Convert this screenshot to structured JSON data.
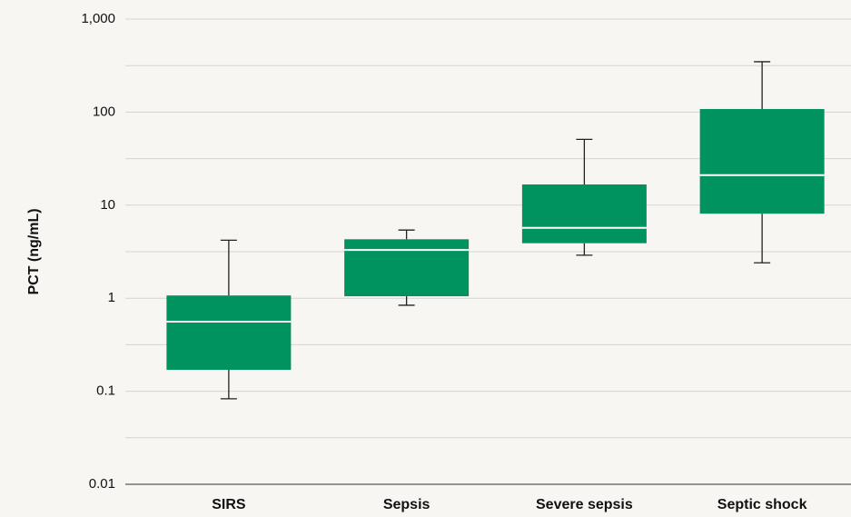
{
  "chart_data": {
    "type": "box",
    "y_label": "PCT (ng/mL)",
    "categories": [
      "SIRS",
      "Sepsis",
      "Severe sepsis",
      "Septic shock"
    ],
    "min": [
      0.083,
      0.84,
      2.9,
      2.4
    ],
    "q1": [
      0.17,
      1.05,
      3.9,
      8.1
    ],
    "median": [
      0.56,
      3.3,
      5.7,
      21
    ],
    "q3": [
      1.07,
      4.3,
      16.7,
      108
    ],
    "max": [
      4.2,
      5.4,
      51,
      348
    ],
    "color": "#00935f",
    "median_color": "#ffffff",
    "whisker_color": "#222222",
    "ylim": [
      0.01,
      1000
    ],
    "yticks": [
      0.01,
      0.1,
      1,
      10,
      100,
      {
        "value": 1000,
        "label": "1,000"
      }
    ],
    "log_scale": true,
    "grid": true
  }
}
